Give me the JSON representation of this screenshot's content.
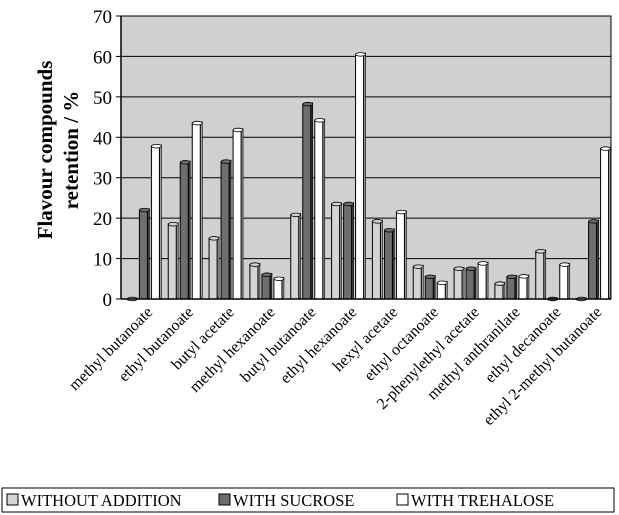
{
  "chart_data": {
    "type": "bar",
    "ylabel_line1": "Flavour compounds",
    "ylabel_line2": "retention  / %",
    "xlabel": "",
    "ylim": [
      0,
      70
    ],
    "yticks": [
      "0",
      "10",
      "20",
      "30",
      "40",
      "50",
      "60",
      "70"
    ],
    "grid": true,
    "legend_position": "bottom",
    "categories": [
      "methyl butanoate",
      "ethyl butanoate",
      "butyl acetate",
      "methyl hexanoate",
      "butyl butanoate",
      "ethyl hexanoate",
      "hexyl acetate",
      "ethyl octanoate",
      "2-phenylethyl acetate",
      "methyl anthranilate",
      "ethyl decanoate",
      "ethyl 2-methyl butanoate"
    ],
    "series": [
      {
        "name": "WITHOUT ADDITION",
        "color": "#d4d4d4",
        "values": [
          0,
          18.5,
          15,
          8.5,
          20.8,
          23.5,
          19.2,
          8,
          7.5,
          3.8,
          11.8,
          0
        ]
      },
      {
        "name": "WITH SUCROSE",
        "color": "#6e6e6e",
        "values": [
          22,
          33.8,
          34,
          6,
          48.2,
          23.5,
          17,
          5.5,
          7.5,
          5.5,
          0,
          19.2
        ]
      },
      {
        "name": "WITH TREHALOSE",
        "color": "#ffffff",
        "values": [
          37.8,
          43.5,
          41.8,
          5,
          44.2,
          60.5,
          21.5,
          4,
          8.8,
          5.6,
          8.5,
          37.2
        ]
      }
    ],
    "plot_background": "#d0d0d0"
  }
}
